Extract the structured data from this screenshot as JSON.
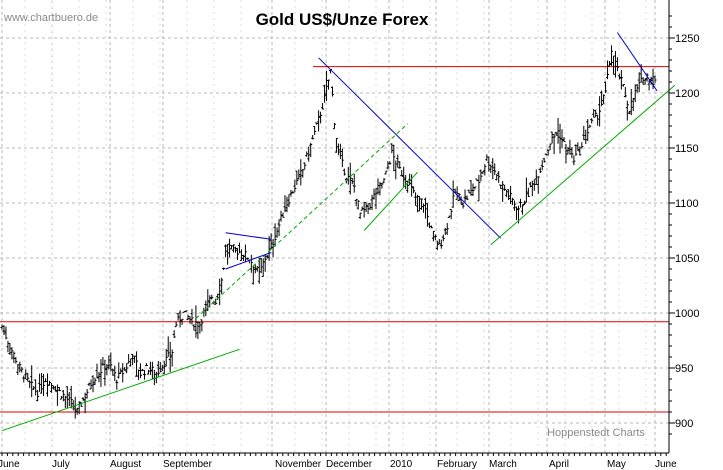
{
  "chart_data": {
    "type": "ohlc",
    "title": "Gold US$/Unze Forex",
    "watermark": "www.chartbuero.de",
    "credit": "Hoppenstedt Charts",
    "ylim": [
      880,
      1280
    ],
    "y_ticks": [
      900,
      950,
      1000,
      1050,
      1100,
      1150,
      1200,
      1250
    ],
    "grid": true,
    "x_labels": [
      "June",
      "July",
      "August",
      "September",
      "November",
      "December",
      "2010",
      "February",
      "March",
      "April",
      "May",
      "June"
    ],
    "bar_count": 268,
    "series_close": [
      [
        0,
        988
      ],
      [
        4,
        970
      ],
      [
        9,
        950
      ],
      [
        14,
        935
      ],
      [
        18,
        928
      ],
      [
        22,
        940
      ],
      [
        27,
        932
      ],
      [
        31,
        925
      ],
      [
        35,
        918
      ],
      [
        38,
        910
      ],
      [
        42,
        925
      ],
      [
        46,
        940
      ],
      [
        50,
        948
      ],
      [
        54,
        955
      ],
      [
        58,
        940
      ],
      [
        62,
        948
      ],
      [
        66,
        962
      ],
      [
        70,
        945
      ],
      [
        74,
        950
      ],
      [
        78,
        945
      ],
      [
        82,
        955
      ],
      [
        86,
        965
      ],
      [
        88,
        990
      ],
      [
        92,
        1000
      ],
      [
        96,
        992
      ],
      [
        100,
        990
      ],
      [
        103,
        1005
      ],
      [
        106,
        1015
      ],
      [
        108,
        1010
      ],
      [
        111,
        1030
      ],
      [
        113,
        1055
      ],
      [
        117,
        1058
      ],
      [
        121,
        1055
      ],
      [
        125,
        1050
      ],
      [
        130,
        1035
      ],
      [
        133,
        1050
      ],
      [
        136,
        1060
      ],
      [
        140,
        1080
      ],
      [
        144,
        1100
      ],
      [
        148,
        1115
      ],
      [
        152,
        1130
      ],
      [
        156,
        1152
      ],
      [
        160,
        1175
      ],
      [
        163,
        1195
      ],
      [
        166,
        1220
      ],
      [
        168,
        1175
      ],
      [
        170,
        1145
      ],
      [
        174,
        1125
      ],
      [
        178,
        1115
      ],
      [
        181,
        1090
      ],
      [
        185,
        1095
      ],
      [
        189,
        1110
      ],
      [
        193,
        1120
      ],
      [
        197,
        1145
      ],
      [
        201,
        1130
      ],
      [
        205,
        1120
      ],
      [
        209,
        1105
      ],
      [
        213,
        1100
      ],
      [
        217,
        1075
      ],
      [
        221,
        1060
      ],
      [
        225,
        1080
      ],
      [
        229,
        1110
      ],
      [
        233,
        1100
      ],
      [
        237,
        1110
      ],
      [
        241,
        1120
      ],
      [
        245,
        1140
      ],
      [
        249,
        1130
      ],
      [
        253,
        1115
      ],
      [
        257,
        1105
      ],
      [
        261,
        1095
      ],
      [
        265,
        1105
      ],
      [
        269,
        1120
      ],
      [
        273,
        1135
      ],
      [
        277,
        1155
      ],
      [
        281,
        1165
      ],
      [
        285,
        1150
      ],
      [
        289,
        1140
      ],
      [
        293,
        1150
      ],
      [
        297,
        1170
      ],
      [
        301,
        1180
      ],
      [
        305,
        1200
      ],
      [
        308,
        1240
      ],
      [
        311,
        1220
      ],
      [
        314,
        1205
      ],
      [
        317,
        1185
      ],
      [
        320,
        1200
      ],
      [
        323,
        1210
      ],
      [
        326,
        1215
      ],
      [
        330,
        1210
      ]
    ],
    "horizontal_lines": [
      {
        "y": 1224,
        "color": "#dd0000"
      },
      {
        "y": 992,
        "color": "#dd0000"
      },
      {
        "y": 910,
        "color": "#dd0000"
      }
    ],
    "trend_lines": [
      {
        "color": "#0000cc",
        "from": [
          160,
          1232
        ],
        "to": [
          252,
          1068
        ]
      },
      {
        "color": "#0000cc",
        "from": [
          311,
          1255
        ],
        "to": [
          331,
          1202
        ]
      },
      {
        "color": "#00aa00",
        "from": [
          0,
          893
        ],
        "to": [
          120,
          967
        ]
      },
      {
        "color": "#00aa00",
        "from": [
          183,
          1075
        ],
        "to": [
          210,
          1128
        ]
      },
      {
        "color": "#00aa00",
        "from": [
          247,
          1062
        ],
        "to": [
          340,
          1207
        ]
      },
      {
        "color": "#00aa00",
        "dashed": true,
        "from": [
          98,
          995
        ],
        "to": [
          205,
          1172
        ]
      }
    ],
    "triangle_lines": [
      {
        "color": "#0000cc",
        "from": [
          113,
          1073
        ],
        "to": [
          136,
          1067
        ]
      },
      {
        "color": "#0000cc",
        "from": [
          113,
          1040
        ],
        "to": [
          136,
          1055
        ]
      }
    ]
  }
}
